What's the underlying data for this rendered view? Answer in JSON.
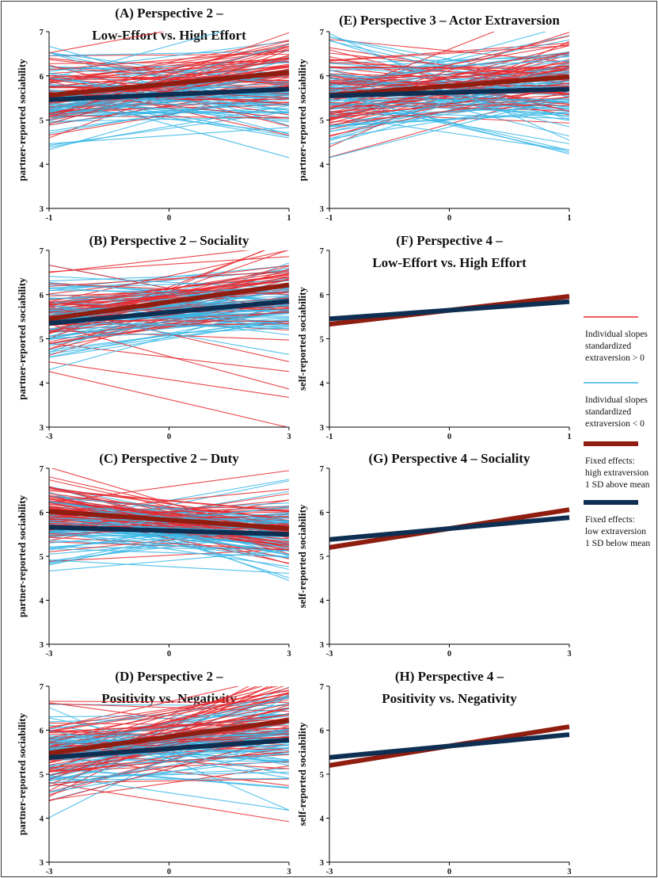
{
  "chart_data": [
    {
      "id": "A",
      "type": "line",
      "title_lines": [
        "(A) Perspective 2 –",
        "Low-Effort vs. High Effort"
      ],
      "ylabel": "partner-reported sociability",
      "xlim": [
        -1,
        1
      ],
      "ylim": [
        3,
        7
      ],
      "xticks": [
        "-1",
        "0",
        "1"
      ],
      "yticks": [
        "3",
        "4",
        "5",
        "6",
        "7"
      ],
      "individual": true,
      "seed": 11,
      "spread_hi": 0.45,
      "spread_lo": 0.55,
      "series": [
        {
          "name": "high",
          "x": [
            -1,
            1
          ],
          "values": [
            5.56,
            6.08
          ]
        },
        {
          "name": "low",
          "x": [
            -1,
            1
          ],
          "values": [
            5.46,
            5.7
          ]
        }
      ]
    },
    {
      "id": "E",
      "type": "line",
      "title_lines": [
        "(E) Perspective 3 –  Actor Extraversion"
      ],
      "ylabel": "partner-reported sociability",
      "xlim": [
        -1,
        1
      ],
      "ylim": [
        3,
        7
      ],
      "xticks": [
        "-1",
        "0",
        "1"
      ],
      "yticks": [
        "3",
        "4",
        "5",
        "6",
        "7"
      ],
      "individual": true,
      "seed": 23,
      "spread_hi": 0.55,
      "spread_lo": 0.55,
      "series": [
        {
          "name": "high",
          "x": [
            -1,
            1
          ],
          "values": [
            5.56,
            5.98
          ]
        },
        {
          "name": "low",
          "x": [
            -1,
            1
          ],
          "values": [
            5.55,
            5.7
          ]
        }
      ]
    },
    {
      "id": "B",
      "type": "line",
      "title_lines": [
        "(B) Perspective 2 – Sociality"
      ],
      "ylabel": "partner-reported sociability",
      "xlim": [
        -3,
        3
      ],
      "ylim": [
        3,
        7
      ],
      "xticks": [
        "-3",
        "0",
        "3"
      ],
      "yticks": [
        "3",
        "4",
        "5",
        "6",
        "7"
      ],
      "individual": true,
      "seed": 37,
      "spread_hi": 0.5,
      "spread_lo": 0.5,
      "series": [
        {
          "name": "high",
          "x": [
            -3,
            3
          ],
          "values": [
            5.45,
            6.22
          ]
        },
        {
          "name": "low",
          "x": [
            -3,
            3
          ],
          "values": [
            5.35,
            5.85
          ]
        }
      ]
    },
    {
      "id": "F",
      "type": "line",
      "title_lines": [
        "(F) Perspective 4 –",
        "Low-Effort vs. High Effort"
      ],
      "ylabel": "self-reported sociability",
      "xlim": [
        -1,
        1
      ],
      "ylim": [
        3,
        7
      ],
      "xticks": [
        "-1",
        "0",
        "1"
      ],
      "yticks": [
        "3",
        "4",
        "5",
        "6",
        "7"
      ],
      "individual": false,
      "series": [
        {
          "name": "high",
          "x": [
            -1,
            1
          ],
          "values": [
            5.33,
            5.96
          ]
        },
        {
          "name": "low",
          "x": [
            -1,
            1
          ],
          "values": [
            5.45,
            5.84
          ]
        }
      ]
    },
    {
      "id": "C",
      "type": "line",
      "title_lines": [
        "(C) Perspective 2 – Duty"
      ],
      "ylabel": "partner-reported sociability",
      "xlim": [
        -3,
        3
      ],
      "ylim": [
        3,
        7
      ],
      "xticks": [
        "-3",
        "0",
        "3"
      ],
      "yticks": [
        "3",
        "4",
        "5",
        "6",
        "7"
      ],
      "individual": true,
      "seed": 53,
      "spread_hi": 0.4,
      "spread_lo": 0.45,
      "series": [
        {
          "name": "high",
          "x": [
            -3,
            3
          ],
          "values": [
            6.02,
            5.63
          ]
        },
        {
          "name": "low",
          "x": [
            -3,
            3
          ],
          "values": [
            5.66,
            5.5
          ]
        }
      ]
    },
    {
      "id": "G",
      "type": "line",
      "title_lines": [
        "(G) Perspective 4 – Sociality"
      ],
      "ylabel": "self-reported sociability",
      "xlim": [
        -3,
        3
      ],
      "ylim": [
        3,
        7
      ],
      "xticks": [
        "-3",
        "0",
        "3"
      ],
      "yticks": [
        "3",
        "4",
        "5",
        "6",
        "7"
      ],
      "individual": false,
      "series": [
        {
          "name": "high",
          "x": [
            -3,
            3
          ],
          "values": [
            5.2,
            6.06
          ]
        },
        {
          "name": "low",
          "x": [
            -3,
            3
          ],
          "values": [
            5.38,
            5.88
          ]
        }
      ]
    },
    {
      "id": "D",
      "type": "line",
      "title_lines": [
        "(D) Perspective 2 –",
        "Positivity vs. Negativity"
      ],
      "ylabel": "partner-reported sociability",
      "xlim": [
        -3,
        3
      ],
      "ylim": [
        3,
        7
      ],
      "xticks": [
        "-3",
        "0",
        "3"
      ],
      "yticks": [
        "3",
        "4",
        "5",
        "6",
        "7"
      ],
      "individual": true,
      "seed": 71,
      "spread_hi": 0.5,
      "spread_lo": 0.55,
      "series": [
        {
          "name": "high",
          "x": [
            -3,
            3
          ],
          "values": [
            5.48,
            6.22
          ]
        },
        {
          "name": "low",
          "x": [
            -3,
            3
          ],
          "values": [
            5.38,
            5.78
          ]
        }
      ]
    },
    {
      "id": "H",
      "type": "line",
      "title_lines": [
        "(H) Perspective 4 –",
        "Positivity vs. Negativity"
      ],
      "ylabel": "self-reported sociability",
      "xlim": [
        -3,
        3
      ],
      "ylim": [
        3,
        7
      ],
      "xticks": [
        "-3",
        "0",
        "3"
      ],
      "yticks": [
        "3",
        "4",
        "5",
        "6",
        "7"
      ],
      "individual": false,
      "series": [
        {
          "name": "high",
          "x": [
            -3,
            3
          ],
          "values": [
            5.2,
            6.08
          ]
        },
        {
          "name": "low",
          "x": [
            -3,
            3
          ],
          "values": [
            5.38,
            5.9
          ]
        }
      ]
    }
  ],
  "legend": {
    "placement": "right",
    "items": [
      {
        "key": "ind_high",
        "lines": [
          "Individual slopes",
          "standardized",
          "extraversion  > 0"
        ]
      },
      {
        "key": "ind_low",
        "lines": [
          "Individual slopes",
          "standardized",
          "extraversion  < 0"
        ]
      },
      {
        "key": "fixed_high",
        "lines": [
          "Fixed effects:",
          "high extraversion",
          "1 SD above mean"
        ]
      },
      {
        "key": "fixed_low",
        "lines": [
          "Fixed effects:",
          "low extraversion",
          "1 SD below mean"
        ]
      }
    ]
  },
  "colors": {
    "ind_high": "#e8262b",
    "ind_low": "#35b6e8",
    "fixed_high": "#8f1d10",
    "fixed_low": "#0f2f52",
    "axis": "#000000",
    "border": "#333333"
  }
}
